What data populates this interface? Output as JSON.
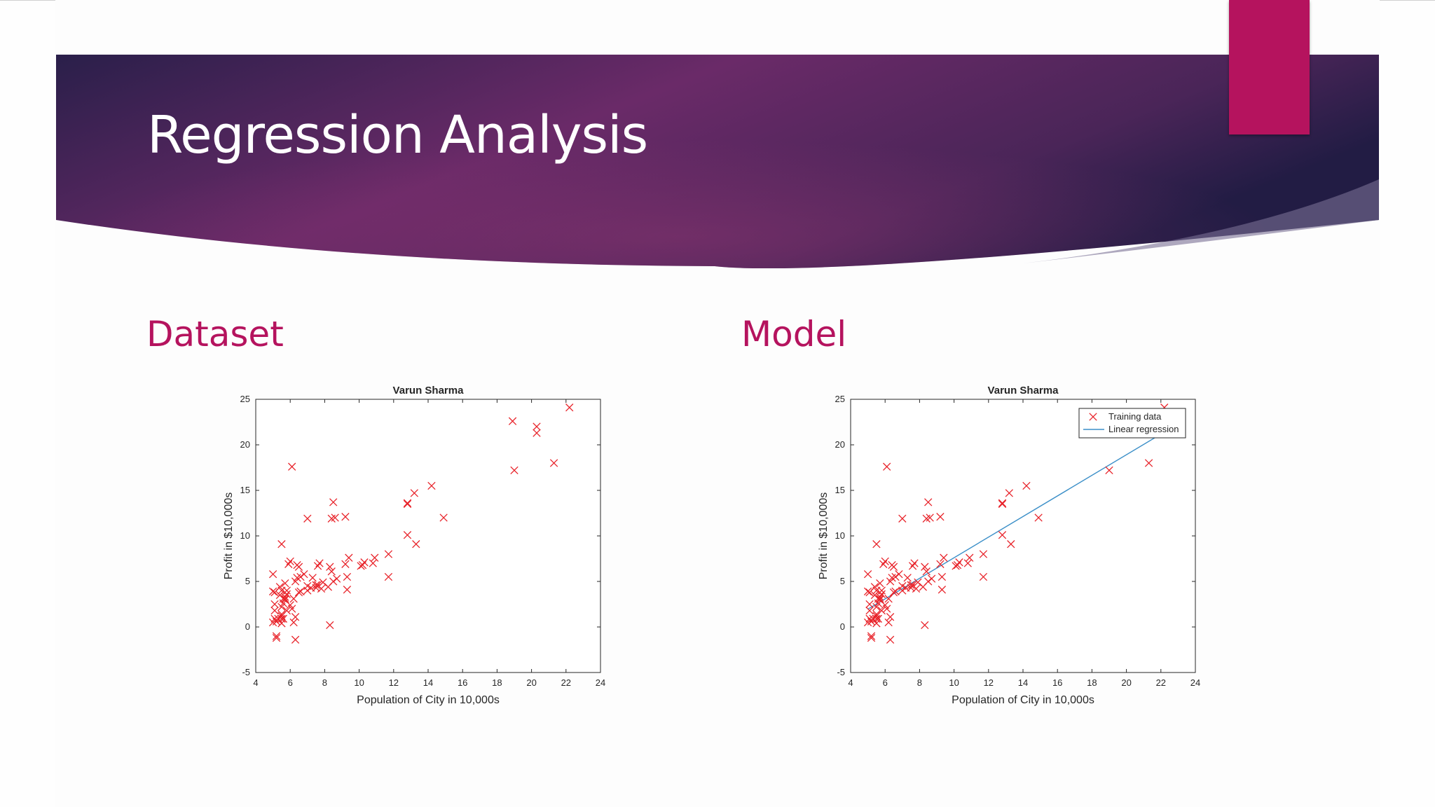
{
  "slide": {
    "title": "Regression Analysis",
    "colors": {
      "banner_dark": "#2a1f4a",
      "banner_mid": "#6a2a68",
      "accent": "#b5135e",
      "heading": "#b5135e"
    }
  },
  "sections": {
    "left_heading": "Dataset",
    "right_heading": "Model"
  },
  "chart_data": [
    {
      "type": "scatter",
      "title": "Varun Sharma",
      "xlabel": "Population of City in 10,000s",
      "ylabel": "Profit in $10,000s",
      "xlim": [
        4,
        24
      ],
      "ylim": [
        -5,
        25
      ],
      "xticks": [
        "4",
        "6",
        "8",
        "10",
        "12",
        "14",
        "16",
        "18",
        "20",
        "22",
        "24"
      ],
      "yticks": [
        "-5",
        "0",
        "5",
        "10",
        "15",
        "20",
        "25"
      ],
      "marker_color": "#e8242b",
      "grid": false,
      "points": [
        [
          6.1,
          17.6
        ],
        [
          5.5,
          9.1
        ],
        [
          8.5,
          13.7
        ],
        [
          7.0,
          11.9
        ],
        [
          5.9,
          6.9
        ],
        [
          8.4,
          11.9
        ],
        [
          7.5,
          4.3
        ],
        [
          8.6,
          12.0
        ],
        [
          6.5,
          6.6
        ],
        [
          5.1,
          3.8
        ],
        [
          5.7,
          3.3
        ],
        [
          14.2,
          15.5
        ],
        [
          5.7,
          3.1
        ],
        [
          6.0,
          7.2
        ],
        [
          7.0,
          4.0
        ],
        [
          5.5,
          4.0
        ],
        [
          5.6,
          3.1
        ],
        [
          5.8,
          4.0
        ],
        [
          5.1,
          2.5
        ],
        [
          5.5,
          2.2
        ],
        [
          7.2,
          4.3
        ],
        [
          7.8,
          4.2
        ],
        [
          5.3,
          0.9
        ],
        [
          5.5,
          1.2
        ],
        [
          5.2,
          0.6
        ],
        [
          6.3,
          5.0
        ],
        [
          5.5,
          1.4
        ],
        [
          5.4,
          4.4
        ],
        [
          6.1,
          2.0
        ],
        [
          5.2,
          -1.0
        ],
        [
          5.1,
          1.8
        ],
        [
          8.4,
          6.1
        ],
        [
          7.0,
          4.5
        ],
        [
          5.0,
          5.8
        ],
        [
          6.3,
          -1.4
        ],
        [
          5.7,
          4.8
        ],
        [
          5.2,
          -1.2
        ],
        [
          5.8,
          3.6
        ],
        [
          5.0,
          3.9
        ],
        [
          12.8,
          13.5
        ],
        [
          10.8,
          7.0
        ],
        [
          20.3,
          22.0
        ],
        [
          19.0,
          17.2
        ],
        [
          18.9,
          22.6
        ],
        [
          21.3,
          18.0
        ],
        [
          22.2,
          24.1
        ],
        [
          20.3,
          21.3
        ],
        [
          12.8,
          10.1
        ],
        [
          13.3,
          9.1
        ],
        [
          14.9,
          12.0
        ],
        [
          10.9,
          7.6
        ],
        [
          11.7,
          8.0
        ],
        [
          5.5,
          0.4
        ],
        [
          5.7,
          3.0
        ],
        [
          6.4,
          5.4
        ],
        [
          5.6,
          2.6
        ],
        [
          9.2,
          12.1
        ],
        [
          11.7,
          5.5
        ],
        [
          9.3,
          4.1
        ],
        [
          7.6,
          6.7
        ],
        [
          6.2,
          0.5
        ],
        [
          5.1,
          0.9
        ],
        [
          6.6,
          3.9
        ],
        [
          6.5,
          3.8
        ],
        [
          7.5,
          4.6
        ],
        [
          6.8,
          5.8
        ],
        [
          8.3,
          0.2
        ],
        [
          8.3,
          6.6
        ],
        [
          6.6,
          5.5
        ],
        [
          7.3,
          5.4
        ],
        [
          7.9,
          4.9
        ],
        [
          8.5,
          5.0
        ],
        [
          6.2,
          3.1
        ],
        [
          9.3,
          5.5
        ],
        [
          7.6,
          4.6
        ],
        [
          6.4,
          6.8
        ],
        [
          5.8,
          1.8
        ],
        [
          5.6,
          0.9
        ],
        [
          5.0,
          0.5
        ],
        [
          5.4,
          3.5
        ],
        [
          6.0,
          2.4
        ],
        [
          10.1,
          6.7
        ],
        [
          8.7,
          5.3
        ],
        [
          12.8,
          13.6
        ],
        [
          13.2,
          14.7
        ],
        [
          10.3,
          7.1
        ],
        [
          9.4,
          7.6
        ],
        [
          7.7,
          7.0
        ],
        [
          5.5,
          0.9
        ],
        [
          9.2,
          6.9
        ],
        [
          8.2,
          4.4
        ],
        [
          6.3,
          1.1
        ],
        [
          10.2,
          6.8
        ]
      ]
    },
    {
      "type": "scatter",
      "title": "Varun Sharma",
      "xlabel": "Population of City in 10,000s",
      "ylabel": "Profit in $10,000s",
      "xlim": [
        4,
        24
      ],
      "ylim": [
        -5,
        25
      ],
      "xticks": [
        "4",
        "6",
        "8",
        "10",
        "12",
        "14",
        "16",
        "18",
        "20",
        "22",
        "24"
      ],
      "yticks": [
        "-5",
        "0",
        "5",
        "10",
        "15",
        "20",
        "25"
      ],
      "marker_color": "#e8242b",
      "line_color": "#3b8fc8",
      "grid": false,
      "legend_position": "top-right",
      "legend": [
        "Training data",
        "Linear regression"
      ],
      "regression_line": {
        "x": [
          5.0,
          22.2
        ],
        "y": [
          1.95,
          21.4
        ]
      },
      "points": [
        [
          6.1,
          17.6
        ],
        [
          5.5,
          9.1
        ],
        [
          8.5,
          13.7
        ],
        [
          7.0,
          11.9
        ],
        [
          5.9,
          6.9
        ],
        [
          8.4,
          11.9
        ],
        [
          7.5,
          4.3
        ],
        [
          8.6,
          12.0
        ],
        [
          6.5,
          6.6
        ],
        [
          5.1,
          3.8
        ],
        [
          5.7,
          3.3
        ],
        [
          14.2,
          15.5
        ],
        [
          5.7,
          3.1
        ],
        [
          6.0,
          7.2
        ],
        [
          7.0,
          4.0
        ],
        [
          5.5,
          4.0
        ],
        [
          5.6,
          3.1
        ],
        [
          5.8,
          4.0
        ],
        [
          5.1,
          2.5
        ],
        [
          5.5,
          2.2
        ],
        [
          7.2,
          4.3
        ],
        [
          7.8,
          4.2
        ],
        [
          5.3,
          0.9
        ],
        [
          5.5,
          1.2
        ],
        [
          5.2,
          0.6
        ],
        [
          6.3,
          5.0
        ],
        [
          5.5,
          1.4
        ],
        [
          5.4,
          4.4
        ],
        [
          6.1,
          2.0
        ],
        [
          5.2,
          -1.0
        ],
        [
          5.1,
          1.8
        ],
        [
          8.4,
          6.1
        ],
        [
          7.0,
          4.5
        ],
        [
          5.0,
          5.8
        ],
        [
          6.3,
          -1.4
        ],
        [
          5.7,
          4.8
        ],
        [
          5.2,
          -1.2
        ],
        [
          5.8,
          3.6
        ],
        [
          5.0,
          3.9
        ],
        [
          12.8,
          13.5
        ],
        [
          10.8,
          7.0
        ],
        [
          20.3,
          22.0
        ],
        [
          19.0,
          17.2
        ],
        [
          18.9,
          22.6
        ],
        [
          21.3,
          18.0
        ],
        [
          22.2,
          24.1
        ],
        [
          20.3,
          21.3
        ],
        [
          12.8,
          10.1
        ],
        [
          13.3,
          9.1
        ],
        [
          14.9,
          12.0
        ],
        [
          10.9,
          7.6
        ],
        [
          11.7,
          8.0
        ],
        [
          5.5,
          0.4
        ],
        [
          5.7,
          3.0
        ],
        [
          6.4,
          5.4
        ],
        [
          5.6,
          2.6
        ],
        [
          9.2,
          12.1
        ],
        [
          11.7,
          5.5
        ],
        [
          9.3,
          4.1
        ],
        [
          7.6,
          6.7
        ],
        [
          6.2,
          0.5
        ],
        [
          5.1,
          0.9
        ],
        [
          6.6,
          3.9
        ],
        [
          6.5,
          3.8
        ],
        [
          7.5,
          4.6
        ],
        [
          6.8,
          5.8
        ],
        [
          8.3,
          0.2
        ],
        [
          8.3,
          6.6
        ],
        [
          6.6,
          5.5
        ],
        [
          7.3,
          5.4
        ],
        [
          7.9,
          4.9
        ],
        [
          8.5,
          5.0
        ],
        [
          6.2,
          3.1
        ],
        [
          9.3,
          5.5
        ],
        [
          7.6,
          4.6
        ],
        [
          6.4,
          6.8
        ],
        [
          5.8,
          1.8
        ],
        [
          5.6,
          0.9
        ],
        [
          5.0,
          0.5
        ],
        [
          5.4,
          3.5
        ],
        [
          6.0,
          2.4
        ],
        [
          10.1,
          6.7
        ],
        [
          8.7,
          5.3
        ],
        [
          12.8,
          13.6
        ],
        [
          13.2,
          14.7
        ],
        [
          10.3,
          7.1
        ],
        [
          9.4,
          7.6
        ],
        [
          7.7,
          7.0
        ],
        [
          5.5,
          0.9
        ],
        [
          9.2,
          6.9
        ],
        [
          8.2,
          4.4
        ],
        [
          6.3,
          1.1
        ],
        [
          10.2,
          6.8
        ]
      ]
    }
  ]
}
